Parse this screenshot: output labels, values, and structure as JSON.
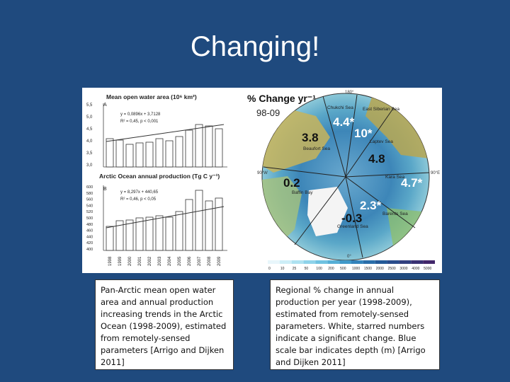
{
  "slide": {
    "title": "Changing!"
  },
  "left_chart": {
    "top_title": "Mean open water area (10⁶ km²)",
    "top_panel_letter": "A",
    "top_eq1": "y = 0,0896x + 3,7128",
    "top_eq2": "R² = 0,45, p < 0,001",
    "top_yticks": [
      "5,5",
      "5,0",
      "4,5",
      "4,0",
      "3,5",
      "3,0"
    ],
    "bottom_title": "Arctic Ocean annual production (Tg C y⁻¹)",
    "bottom_panel_letter": "B",
    "bottom_eq1": "y = 8,297x + 440,65",
    "bottom_eq2": "R² = 0,46, p < 0,05",
    "bottom_yticks": [
      "600",
      "580",
      "560",
      "540",
      "520",
      "500",
      "480",
      "460",
      "440",
      "420",
      "400"
    ],
    "years": [
      "1998",
      "1999",
      "2000",
      "2001",
      "2002",
      "2003",
      "2004",
      "2005",
      "2006",
      "2007",
      "2008",
      "2009"
    ]
  },
  "map": {
    "title": "% Change yr⁻¹",
    "period": "98-09",
    "lon_top": "180°",
    "lon_left": "90°W",
    "lon_right": "90°E",
    "lon_bottom": "0°",
    "seas": {
      "chukchi": "Chukchi Sea",
      "east_siberian": "East Siberian Sea",
      "laptev": "Laptev Sea",
      "beaufort": "Beaufort Sea",
      "kara": "Kara Sea",
      "baffin": "Baffin Bay",
      "barents": "Barents Sea",
      "greenland": "Greenland Sea"
    },
    "values": {
      "chukchi": "4.4*",
      "east_siberian": "10*",
      "beaufort": "3.8",
      "central": "4.8",
      "kara": "4.7*",
      "baffin": "0.2",
      "barents": "2.3*",
      "greenland": "-0.3"
    },
    "depth_ticks": [
      "0",
      "10",
      "25",
      "50",
      "100",
      "200",
      "500",
      "1000",
      "1500",
      "2000",
      "2500",
      "3000",
      "4000",
      "5000"
    ]
  },
  "captions": {
    "left": "Pan-Arctic mean open water area and annual production increasing trends in the Arctic Ocean (1998-2009), estimated from remotely-sensed parameters [Arrigo and Dijken 2011]",
    "right": "Regional % change in annual production per year (1998-2009), estimated from remotely-sensed parameters. White, starred numbers indicate a significant change. Blue scale bar indicates depth (m) [Arrigo and Dijken 2011]"
  }
}
